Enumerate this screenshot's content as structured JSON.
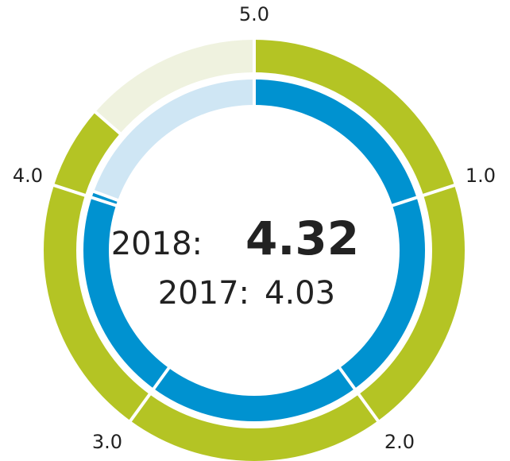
{
  "chart_data": {
    "type": "radial-gauge",
    "scale": {
      "min": 0,
      "max": 5,
      "ticks": [
        "1.0",
        "2.0",
        "3.0",
        "4.0",
        "5.0"
      ]
    },
    "series": [
      {
        "year": "2018",
        "value": 4.32,
        "color": "#b4c424",
        "track_color": "#eff2df",
        "ring": "outer"
      },
      {
        "year": "2017",
        "value": 4.03,
        "color": "#0092d0",
        "track_color": "#cfe6f4",
        "ring": "inner"
      }
    ],
    "center": {
      "primary_label": "2018:",
      "primary_value": "4.32",
      "secondary_label": "2017:",
      "secondary_value": "4.03"
    }
  }
}
